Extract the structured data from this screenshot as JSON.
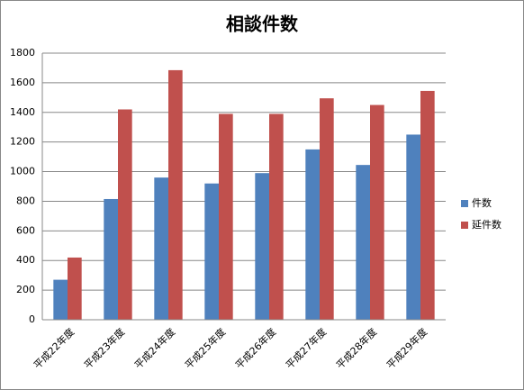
{
  "chart_data": {
    "type": "bar",
    "title": "相談件数",
    "categories": [
      "平成22年度",
      "平成23年度",
      "平成24年度",
      "平成25年度",
      "平成26年度",
      "平成27年度",
      "平成28年度",
      "平成29年度"
    ],
    "series": [
      {
        "name": "件数",
        "color": "#4f81bd",
        "values": [
          270,
          815,
          960,
          920,
          990,
          1150,
          1045,
          1250
        ]
      },
      {
        "name": "延件数",
        "color": "#c0504d",
        "values": [
          420,
          1420,
          1685,
          1390,
          1390,
          1495,
          1450,
          1545
        ]
      }
    ],
    "ylim": [
      0,
      1800
    ],
    "yticks": [
      0,
      200,
      400,
      600,
      800,
      1000,
      1200,
      1400,
      1600,
      1800
    ],
    "grid": true,
    "legend": "right"
  }
}
